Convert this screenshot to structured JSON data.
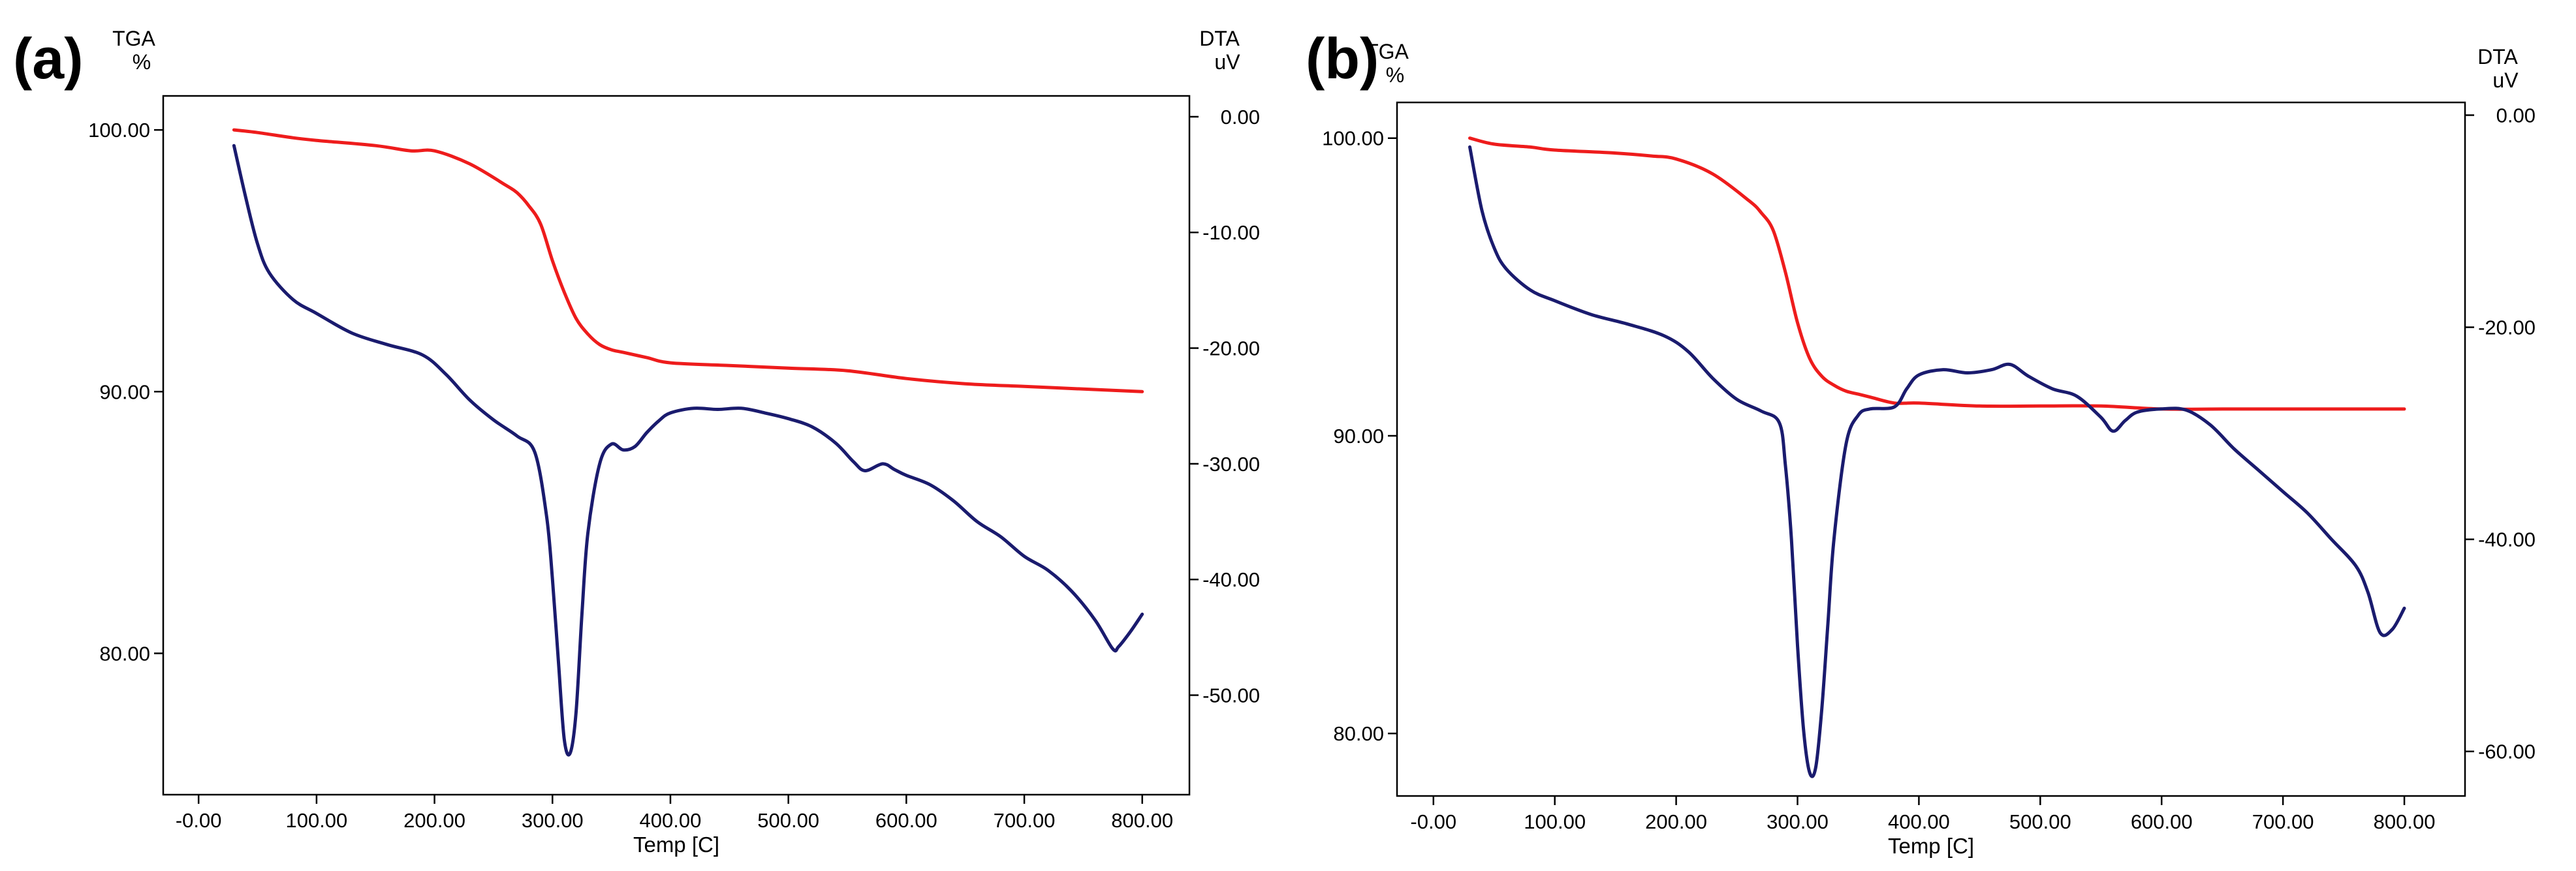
{
  "chart_data": [
    {
      "type": "line",
      "panel_label": "(a)",
      "left_axis_title": "TGA",
      "left_axis_unit": "%",
      "right_axis_title": "DTA",
      "right_axis_unit": "uV",
      "xlabel": "Temp [C]",
      "xlim": [
        -30,
        840
      ],
      "ylim_left": [
        74.6,
        101.3
      ],
      "ylim_right": [
        -58.6,
        1.8
      ],
      "x_ticks": [
        {
          "v": 0,
          "label": "-0.00"
        },
        {
          "v": 100,
          "label": "100.00"
        },
        {
          "v": 200,
          "label": "200.00"
        },
        {
          "v": 300,
          "label": "300.00"
        },
        {
          "v": 400,
          "label": "400.00"
        },
        {
          "v": 500,
          "label": "500.00"
        },
        {
          "v": 600,
          "label": "600.00"
        },
        {
          "v": 700,
          "label": "700.00"
        },
        {
          "v": 800,
          "label": "800.00"
        }
      ],
      "left_ticks": [
        {
          "v": 100,
          "label": "100.00"
        },
        {
          "v": 90,
          "label": "90.00"
        },
        {
          "v": 80,
          "label": "80.00"
        }
      ],
      "right_ticks": [
        {
          "v": 0,
          "label": "0.00"
        },
        {
          "v": -10,
          "label": "-10.00"
        },
        {
          "v": -20,
          "label": "-20.00"
        },
        {
          "v": -30,
          "label": "-30.00"
        },
        {
          "v": -40,
          "label": "-40.00"
        },
        {
          "v": -50,
          "label": "-50.00"
        }
      ],
      "series": [
        {
          "name": "TGA",
          "axis": "left",
          "color": "#ee1c1c",
          "x": [
            30,
            50,
            80,
            100,
            150,
            180,
            200,
            230,
            260,
            270,
            280,
            290,
            300,
            310,
            320,
            330,
            340,
            350,
            360,
            380,
            400,
            450,
            500,
            550,
            600,
            650,
            700,
            750,
            800
          ],
          "y": [
            100.0,
            99.9,
            99.7,
            99.6,
            99.4,
            99.2,
            99.2,
            98.7,
            97.9,
            97.6,
            97.1,
            96.4,
            95.0,
            93.8,
            92.8,
            92.2,
            91.8,
            91.6,
            91.5,
            91.3,
            91.1,
            91.0,
            90.9,
            90.8,
            90.5,
            90.3,
            90.2,
            90.1,
            90.0
          ]
        },
        {
          "name": "DTA",
          "axis": "right",
          "color": "#1a1b6e",
          "x": [
            30,
            40,
            50,
            60,
            80,
            100,
            130,
            160,
            190,
            210,
            230,
            250,
            270,
            285,
            295,
            300,
            305,
            310,
            315,
            320,
            325,
            330,
            340,
            350,
            360,
            370,
            380,
            390,
            400,
            420,
            440,
            460,
            480,
            500,
            520,
            540,
            555,
            565,
            580,
            590,
            600,
            620,
            640,
            660,
            680,
            700,
            720,
            740,
            760,
            775,
            780,
            790,
            800
          ],
          "y": [
            -2.5,
            -7.0,
            -11.0,
            -13.5,
            -15.8,
            -17.0,
            -18.7,
            -19.7,
            -20.6,
            -22.3,
            -24.5,
            -26.2,
            -27.6,
            -29.0,
            -34.5,
            -40.0,
            -47.0,
            -53.8,
            -55.0,
            -51.5,
            -43.0,
            -36.0,
            -30.0,
            -28.3,
            -28.8,
            -28.5,
            -27.3,
            -26.3,
            -25.6,
            -25.2,
            -25.3,
            -25.2,
            -25.6,
            -26.1,
            -26.8,
            -28.2,
            -29.8,
            -30.6,
            -30.0,
            -30.5,
            -31.0,
            -31.8,
            -33.2,
            -35.0,
            -36.3,
            -38.0,
            -39.2,
            -41.0,
            -43.5,
            -46.0,
            -45.8,
            -44.5,
            -43.0
          ]
        }
      ]
    },
    {
      "type": "line",
      "panel_label": "(b)",
      "left_axis_title": "TGA",
      "left_axis_unit": "%",
      "right_axis_title": "DTA",
      "right_axis_unit": "uV",
      "xlabel": "Temp [C]",
      "xlim": [
        -30,
        850
      ],
      "ylim_left": [
        77.9,
        101.2
      ],
      "ylim_right": [
        -64.2,
        1.2
      ],
      "x_ticks": [
        {
          "v": 0,
          "label": "-0.00"
        },
        {
          "v": 100,
          "label": "100.00"
        },
        {
          "v": 200,
          "label": "200.00"
        },
        {
          "v": 300,
          "label": "300.00"
        },
        {
          "v": 400,
          "label": "400.00"
        },
        {
          "v": 500,
          "label": "500.00"
        },
        {
          "v": 600,
          "label": "600.00"
        },
        {
          "v": 700,
          "label": "700.00"
        },
        {
          "v": 800,
          "label": "800.00"
        }
      ],
      "left_ticks": [
        {
          "v": 100,
          "label": "100.00"
        },
        {
          "v": 90,
          "label": "90.00"
        },
        {
          "v": 80,
          "label": "80.00"
        }
      ],
      "right_ticks": [
        {
          "v": 0,
          "label": "0.00"
        },
        {
          "v": -20,
          "label": "-20.00"
        },
        {
          "v": -40,
          "label": "-40.00"
        },
        {
          "v": -60,
          "label": "-60.00"
        }
      ],
      "series": [
        {
          "name": "TGA",
          "axis": "left",
          "color": "#ee1c1c",
          "x": [
            30,
            50,
            80,
            100,
            150,
            180,
            200,
            230,
            260,
            270,
            280,
            290,
            300,
            310,
            320,
            330,
            340,
            350,
            360,
            380,
            400,
            450,
            500,
            550,
            600,
            650,
            700,
            750,
            800
          ],
          "y": [
            100.0,
            99.8,
            99.7,
            99.6,
            99.5,
            99.4,
            99.3,
            98.8,
            97.9,
            97.5,
            96.9,
            95.5,
            93.8,
            92.6,
            92.0,
            91.7,
            91.5,
            91.4,
            91.3,
            91.1,
            91.1,
            91.0,
            91.0,
            91.0,
            90.9,
            90.9,
            90.9,
            90.9,
            90.9
          ]
        },
        {
          "name": "DTA",
          "axis": "right",
          "color": "#1a1b6e",
          "x": [
            30,
            40,
            50,
            60,
            80,
            100,
            130,
            160,
            190,
            210,
            230,
            250,
            270,
            285,
            290,
            295,
            300,
            305,
            310,
            315,
            320,
            325,
            330,
            340,
            350,
            360,
            380,
            390,
            400,
            420,
            440,
            460,
            475,
            490,
            510,
            530,
            550,
            560,
            570,
            580,
            600,
            620,
            640,
            660,
            680,
            700,
            720,
            740,
            760,
            770,
            780,
            790,
            800
          ],
          "y": [
            -3.0,
            -9.0,
            -12.5,
            -14.5,
            -16.5,
            -17.5,
            -18.8,
            -19.7,
            -20.8,
            -22.3,
            -24.8,
            -26.8,
            -27.9,
            -29.0,
            -33.0,
            -40.0,
            -50.0,
            -58.0,
            -62.0,
            -61.5,
            -56.0,
            -48.0,
            -40.0,
            -31.0,
            -28.3,
            -27.7,
            -27.5,
            -25.8,
            -24.5,
            -24.0,
            -24.3,
            -24.0,
            -23.5,
            -24.6,
            -25.8,
            -26.5,
            -28.5,
            -29.8,
            -28.8,
            -28.0,
            -27.7,
            -27.8,
            -29.2,
            -31.5,
            -33.5,
            -35.5,
            -37.5,
            -40.0,
            -42.5,
            -45.0,
            -48.8,
            -48.5,
            -46.5
          ]
        }
      ]
    }
  ]
}
